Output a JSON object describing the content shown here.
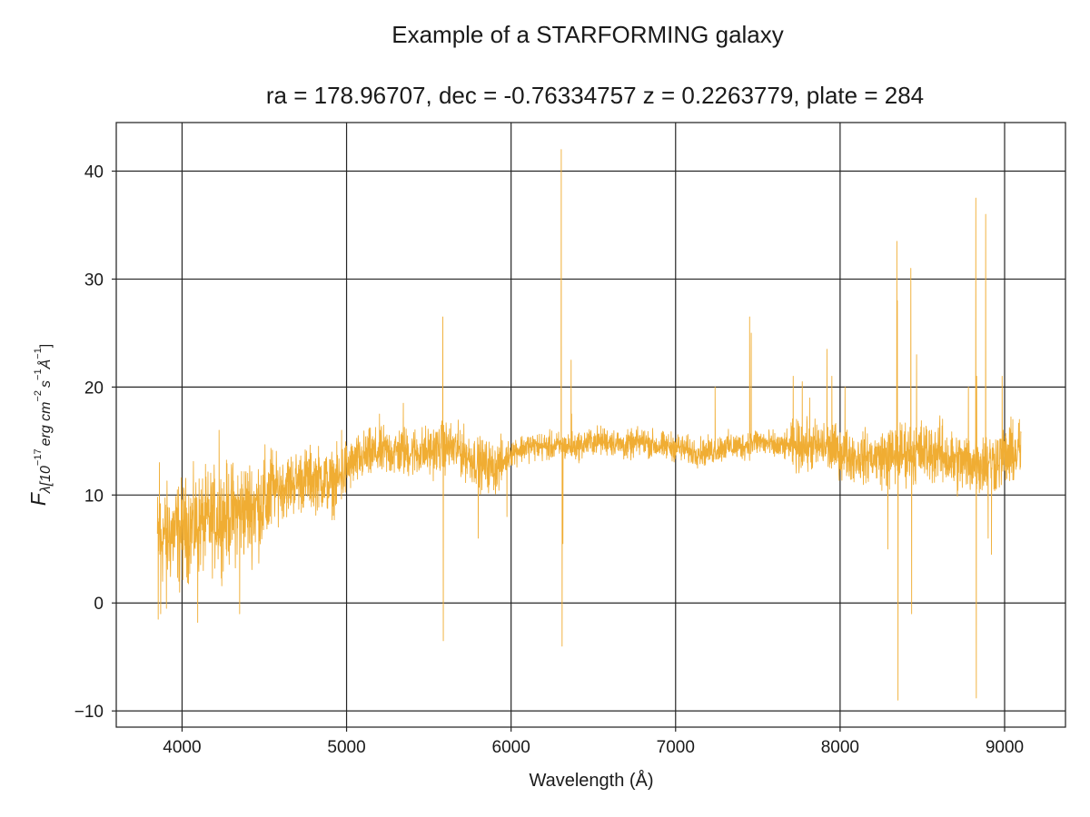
{
  "figure": {
    "suptitle": "Example of a STARFORMING galaxy",
    "title": "ra = 178.96707, dec = -0.76334757 z = 0.2263779, plate = 284"
  },
  "chart_data": {
    "type": "line",
    "title": "Example of a STARFORMING galaxy",
    "subtitle": "ra = 178.96707, dec = -0.76334757 z = 0.2263779, plate = 284",
    "xlabel": "Wavelength (Å)",
    "ylabel": "F_λ[10^{-17} erg cm^{-2} s^{-1} Å^{-1}]",
    "ylabel_parts": {
      "base": "F",
      "sub": "λ[10",
      "exp1": "−17",
      "mid": "erg cm",
      "exp2": "−2",
      "mid2": "s",
      "exp3": "−1",
      "mid3": "Å",
      "exp4": "−1",
      "end": "]"
    },
    "xlim": [
      3600,
      9370
    ],
    "ylim": [
      -11.5,
      44.5
    ],
    "xticks": [
      4000,
      5000,
      6000,
      7000,
      8000,
      9000
    ],
    "yticks": [
      -10,
      0,
      10,
      20,
      30,
      40
    ],
    "grid": true,
    "series": [
      {
        "color": "#f0ad33",
        "continuum": [
          [
            3850,
            6.0
          ],
          [
            3950,
            6.5
          ],
          [
            4050,
            7.0
          ],
          [
            4150,
            7.5
          ],
          [
            4250,
            8.0
          ],
          [
            4350,
            8.5
          ],
          [
            4450,
            9.0
          ],
          [
            4520,
            9.5
          ],
          [
            4550,
            10.5
          ],
          [
            4650,
            11.0
          ],
          [
            4750,
            11.5
          ],
          [
            4850,
            11.5
          ],
          [
            4900,
            11.0
          ],
          [
            4960,
            11.5
          ],
          [
            5000,
            12.5
          ],
          [
            5100,
            13.5
          ],
          [
            5200,
            14.0
          ],
          [
            5300,
            14.0
          ],
          [
            5400,
            14.0
          ],
          [
            5500,
            14.0
          ],
          [
            5600,
            14.5
          ],
          [
            5700,
            14.0
          ],
          [
            5800,
            13.0
          ],
          [
            5900,
            12.5
          ],
          [
            5950,
            13.0
          ],
          [
            6000,
            14.0
          ],
          [
            6100,
            14.5
          ],
          [
            6200,
            14.5
          ],
          [
            6300,
            14.5
          ],
          [
            6400,
            14.5
          ],
          [
            6500,
            15.0
          ],
          [
            6600,
            15.0
          ],
          [
            6700,
            14.5
          ],
          [
            6800,
            15.0
          ],
          [
            6900,
            14.5
          ],
          [
            7000,
            14.5
          ],
          [
            7100,
            14.0
          ],
          [
            7200,
            14.0
          ],
          [
            7300,
            14.5
          ],
          [
            7400,
            14.5
          ],
          [
            7500,
            15.0
          ],
          [
            7600,
            14.5
          ],
          [
            7700,
            14.5
          ],
          [
            7800,
            14.5
          ],
          [
            7900,
            14.5
          ],
          [
            8000,
            14.0
          ],
          [
            8100,
            13.5
          ],
          [
            8200,
            13.5
          ],
          [
            8300,
            13.5
          ],
          [
            8400,
            14.0
          ],
          [
            8500,
            14.0
          ],
          [
            8600,
            14.0
          ],
          [
            8700,
            13.0
          ],
          [
            8800,
            13.0
          ],
          [
            8900,
            13.0
          ],
          [
            9000,
            13.5
          ],
          [
            9100,
            14.0
          ]
        ],
        "features": [
          [
            3855,
            -1.5
          ],
          [
            3862,
            13.0
          ],
          [
            3870,
            -1.0
          ],
          [
            3905,
            -0.5
          ],
          [
            3985,
            1.0
          ],
          [
            4095,
            -1.8
          ],
          [
            4225,
            16.0
          ],
          [
            4350,
            -1.0
          ],
          [
            4970,
            16.0
          ],
          [
            5200,
            17.5
          ],
          [
            5345,
            18.5
          ],
          [
            5585,
            26.5
          ],
          [
            5588,
            -3.5
          ],
          [
            5690,
            16.0
          ],
          [
            5800,
            6.0
          ],
          [
            5975,
            8.0
          ],
          [
            6305,
            42.0
          ],
          [
            6310,
            -4.0
          ],
          [
            6315,
            5.5
          ],
          [
            6365,
            22.5
          ],
          [
            6368,
            17.5
          ],
          [
            7240,
            20.0
          ],
          [
            7450,
            26.5
          ],
          [
            7460,
            25.0
          ],
          [
            7715,
            21.0
          ],
          [
            7770,
            20.5
          ],
          [
            7815,
            19.0
          ],
          [
            7920,
            23.5
          ],
          [
            7950,
            21.0
          ],
          [
            8030,
            20.0
          ],
          [
            8290,
            5.0
          ],
          [
            8345,
            33.5
          ],
          [
            8348,
            28.0
          ],
          [
            8352,
            -9.0
          ],
          [
            8430,
            31.0
          ],
          [
            8435,
            -1.0
          ],
          [
            8465,
            23.0
          ],
          [
            8780,
            20.0
          ],
          [
            8825,
            37.5
          ],
          [
            8828,
            -8.8
          ],
          [
            8830,
            21.0
          ],
          [
            8885,
            36.0
          ],
          [
            8900,
            6.0
          ],
          [
            8920,
            4.5
          ],
          [
            8985,
            21.0
          ],
          [
            9050,
            17.0
          ],
          [
            9090,
            17.0
          ]
        ]
      }
    ]
  }
}
